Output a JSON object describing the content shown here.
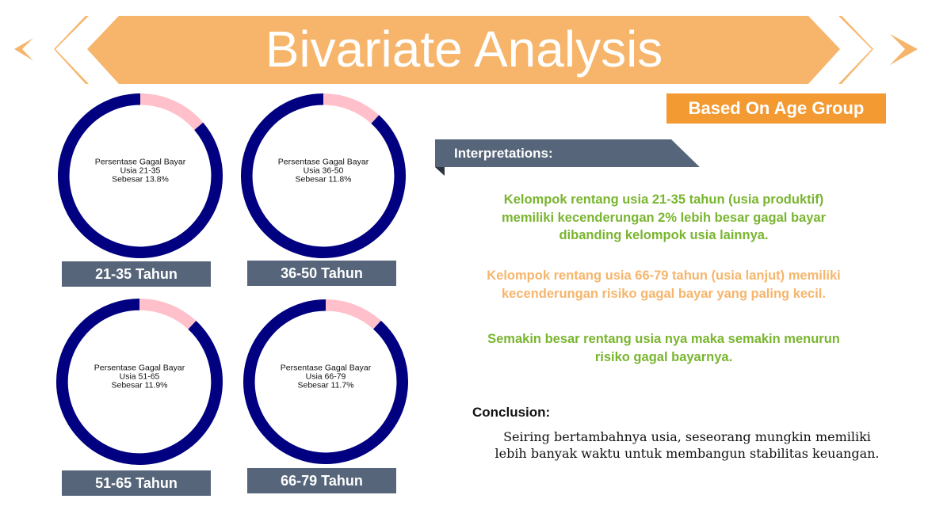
{
  "header": {
    "title": "Bivariate Analysis",
    "subtitle": "Based On Age Group",
    "banner_color": "#F6B56B"
  },
  "chart_data": [
    {
      "type": "pie",
      "categories": [
        "Gagal Bayar",
        "Lainnya"
      ],
      "values": [
        13.8,
        86.2
      ],
      "colors": [
        "#FFC0CB",
        "#000080"
      ],
      "center_text": [
        "Persentase Gagal Bayar",
        "Usia 21-35",
        "Sebesar 13.8%"
      ],
      "label": "21-35 Tahun"
    },
    {
      "type": "pie",
      "categories": [
        "Gagal Bayar",
        "Lainnya"
      ],
      "values": [
        11.8,
        88.2
      ],
      "colors": [
        "#FFC0CB",
        "#000080"
      ],
      "center_text": [
        "Persentase Gagal Bayar",
        "Usia 36-50",
        "Sebesar 11.8%"
      ],
      "label": "36-50 Tahun"
    },
    {
      "type": "pie",
      "categories": [
        "Gagal Bayar",
        "Lainnya"
      ],
      "values": [
        11.9,
        88.1
      ],
      "colors": [
        "#FFC0CB",
        "#000080"
      ],
      "center_text": [
        "Persentase Gagal Bayar",
        "Usia 51-65",
        "Sebesar 11.9%"
      ],
      "label": "51-65 Tahun"
    },
    {
      "type": "pie",
      "categories": [
        "Gagal Bayar",
        "Lainnya"
      ],
      "values": [
        11.7,
        88.3
      ],
      "colors": [
        "#FFC0CB",
        "#000080"
      ],
      "center_text": [
        "Persentase Gagal Bayar",
        "Usia 66-79",
        "Sebesar 11.7%"
      ],
      "label": "66-79 Tahun"
    }
  ],
  "interpretations": {
    "title": "Interpretations:",
    "points": [
      [
        "Kelompok rentang usia 21-35 tahun (usia produktif)",
        "memiliki kecenderungan 2% lebih besar  gagal bayar",
        "dibanding kelompok usia lainnya."
      ],
      [
        "Kelompok rentang usia 66-79 tahun (usia lanjut) memiliki",
        "kecenderungan risiko gagal bayar yang paling kecil."
      ],
      [
        "Semakin besar rentang usia nya maka semakin menurun",
        "risiko gagal bayarnya."
      ]
    ]
  },
  "conclusion": {
    "title": "Conclusion:",
    "lines": [
      "Seiring bertambahnya usia, seseorang mungkin memiliki",
      "lebih banyak waktu untuk membangun stabilitas keuangan."
    ]
  }
}
